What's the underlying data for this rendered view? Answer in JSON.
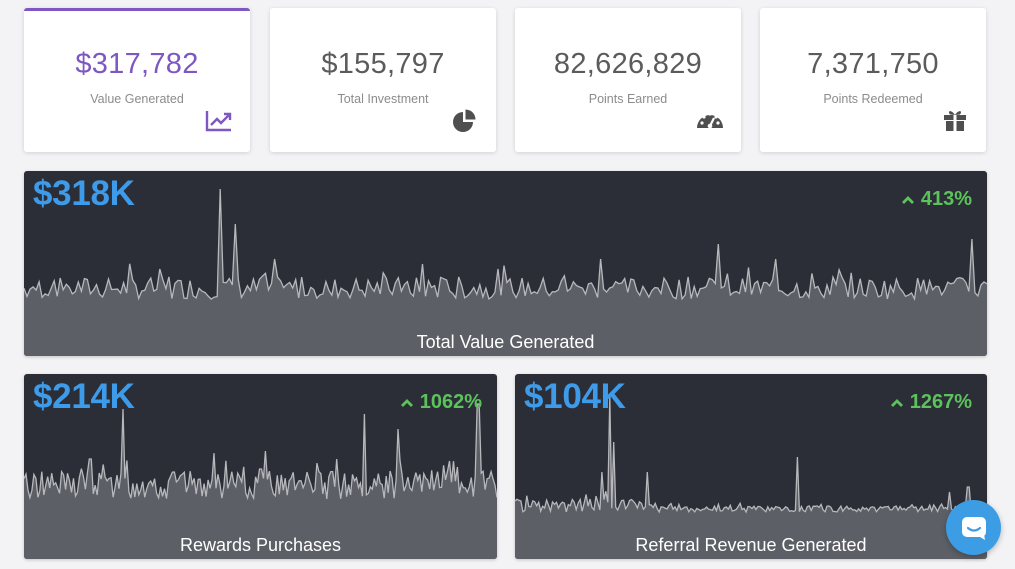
{
  "stats": [
    {
      "value": "$317,782",
      "label": "Value Generated",
      "icon": "trending-up-icon",
      "active": true
    },
    {
      "value": "$155,797",
      "label": "Total Investment",
      "icon": "pie-chart-icon"
    },
    {
      "value": "82,626,829",
      "label": "Points Earned",
      "icon": "speedometer-icon"
    },
    {
      "value": "7,371,750",
      "label": "Points Redeemed",
      "icon": "gift-icon"
    }
  ],
  "panels": {
    "total": {
      "value": "$318K",
      "change": "413%",
      "label": "Total Value Generated"
    },
    "rewards": {
      "value": "$214K",
      "change": "1062%",
      "label": "Rewards Purchases"
    },
    "referral": {
      "value": "$104K",
      "change": "1267%",
      "label": "Referral Revenue Generated"
    }
  },
  "chat": {
    "icon": "chat-icon"
  },
  "colors": {
    "accent": "#7e57c2",
    "panel_bg": "#2b2e36",
    "panel_value": "#3d9be9",
    "positive": "#5cc25c",
    "chat_button": "#3c9de4"
  }
}
